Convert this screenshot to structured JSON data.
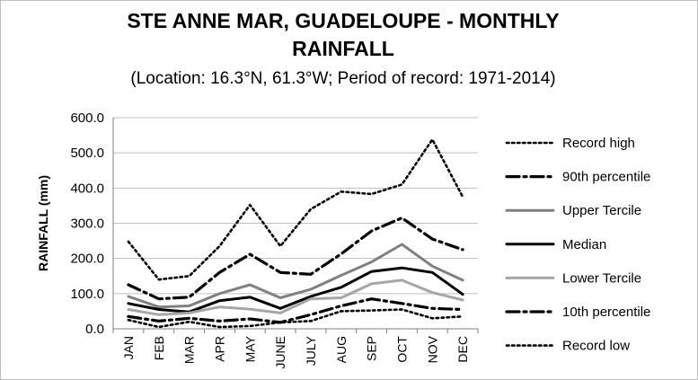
{
  "chart_data": {
    "type": "line",
    "title_line1": "STE ANNE MAR, GUADELOUPE - MONTHLY",
    "title_line2": "RAINFALL",
    "subtitle": "(Location: 16.3°N, 61.3°W; Period of record: 1971-2014)",
    "xlabel": "",
    "ylabel": "RAINFALL (mm)",
    "ylim": [
      0,
      600
    ],
    "yticks": [
      "0.0",
      "100.0",
      "200.0",
      "300.0",
      "400.0",
      "500.0",
      "600.0"
    ],
    "categories": [
      "JAN",
      "FEB",
      "MAR",
      "APR",
      "MAY",
      "JUNE",
      "JULY",
      "AUG",
      "SEP",
      "OCT",
      "NOV",
      "DEC"
    ],
    "grid": "horizontal",
    "legend_position": "right",
    "series": [
      {
        "name": "Record high",
        "color": "#000000",
        "style": "dotted",
        "values": [
          248,
          140,
          150,
          235,
          352,
          235,
          340,
          390,
          383,
          410,
          538,
          375
        ]
      },
      {
        "name": "90th percentile",
        "color": "#000000",
        "style": "dashdot",
        "values": [
          125,
          85,
          90,
          160,
          212,
          160,
          155,
          213,
          278,
          315,
          255,
          225
        ]
      },
      {
        "name": "Upper Tercile",
        "color": "#808080",
        "style": "solid",
        "values": [
          92,
          62,
          65,
          100,
          125,
          88,
          112,
          152,
          190,
          240,
          178,
          138
        ]
      },
      {
        "name": "Median",
        "color": "#000000",
        "style": "solid",
        "values": [
          72,
          55,
          48,
          80,
          90,
          58,
          92,
          118,
          163,
          173,
          160,
          98
        ]
      },
      {
        "name": "Lower Tercile",
        "color": "#a6a6a6",
        "style": "solid",
        "values": [
          55,
          40,
          45,
          62,
          56,
          45,
          85,
          88,
          128,
          138,
          103,
          82
        ]
      },
      {
        "name": "10th percentile",
        "color": "#000000",
        "style": "dashdot",
        "values": [
          35,
          22,
          30,
          22,
          28,
          18,
          40,
          65,
          85,
          72,
          58,
          55
        ]
      },
      {
        "name": "Record low",
        "color": "#000000",
        "style": "dotted",
        "values": [
          25,
          5,
          20,
          5,
          8,
          18,
          22,
          50,
          52,
          55,
          30,
          35
        ]
      }
    ]
  }
}
